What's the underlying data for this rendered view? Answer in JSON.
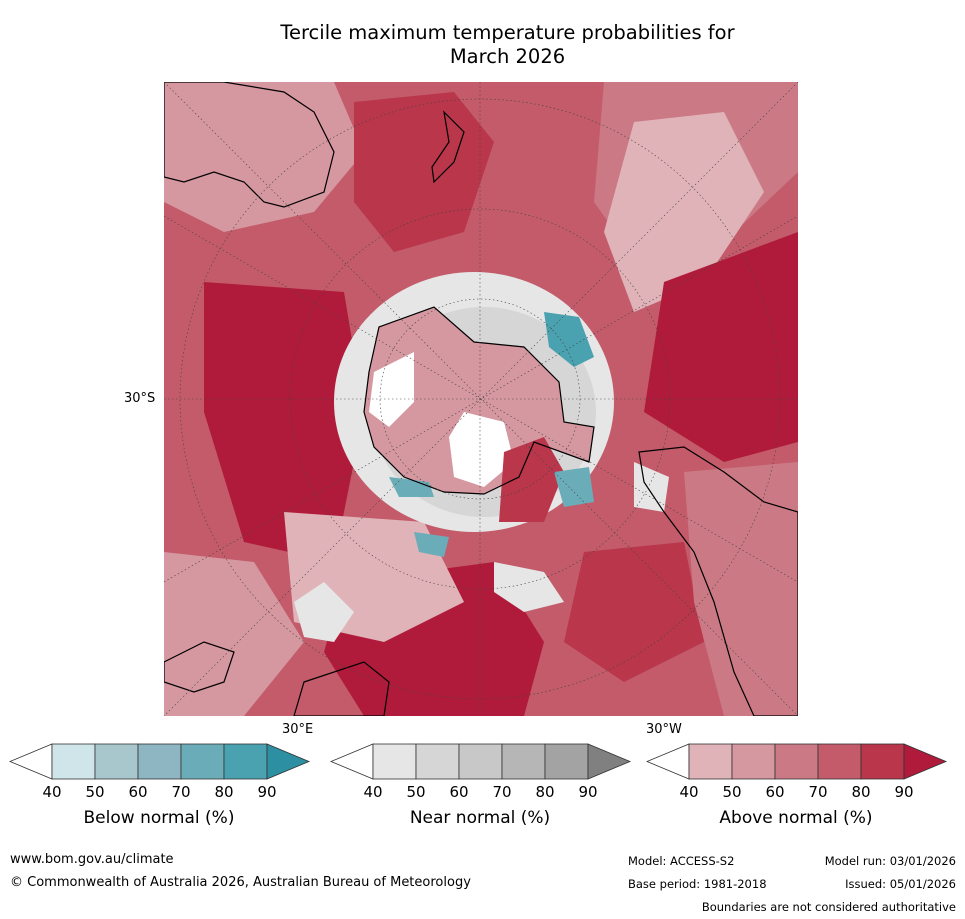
{
  "title": {
    "line1": "Tercile maximum temperature probabilities for",
    "line2": "March 2026"
  },
  "map": {
    "lat_label": "30°S",
    "lon_label_east": "30°E",
    "lon_label_west": "30°W"
  },
  "colorbars": [
    {
      "label": "Below normal (%)",
      "ticks": [
        "40",
        "50",
        "60",
        "70",
        "80",
        "90"
      ],
      "colors": [
        "#cfe5ea",
        "#a8c7cd",
        "#8db6c2",
        "#6aadb8",
        "#4aa1b0",
        "#2d8fa2"
      ]
    },
    {
      "label": "Near normal (%)",
      "ticks": [
        "40",
        "50",
        "60",
        "70",
        "80",
        "90"
      ],
      "colors": [
        "#e6e6e6",
        "#d6d6d6",
        "#c8c8c8",
        "#b6b6b6",
        "#a3a3a3",
        "#808080"
      ]
    },
    {
      "label": "Above normal (%)",
      "ticks": [
        "40",
        "50",
        "60",
        "70",
        "80",
        "90"
      ],
      "colors": [
        "#e0b3b9",
        "#d597a0",
        "#cb7a85",
        "#c35b6a",
        "#b9364b",
        "#b01b3b"
      ]
    }
  ],
  "footer": {
    "url": "www.bom.gov.au/climate",
    "copyright": "© Commonwealth of Australia 2026, Australian Bureau of Meteorology",
    "model": "Model: ACCESS-S2",
    "model_run": "Model run: 03/01/2026",
    "base_period": "Base period: 1981-2018",
    "issued": "Issued: 05/01/2026",
    "disclaimer": "Boundaries are not considered authoritative"
  }
}
